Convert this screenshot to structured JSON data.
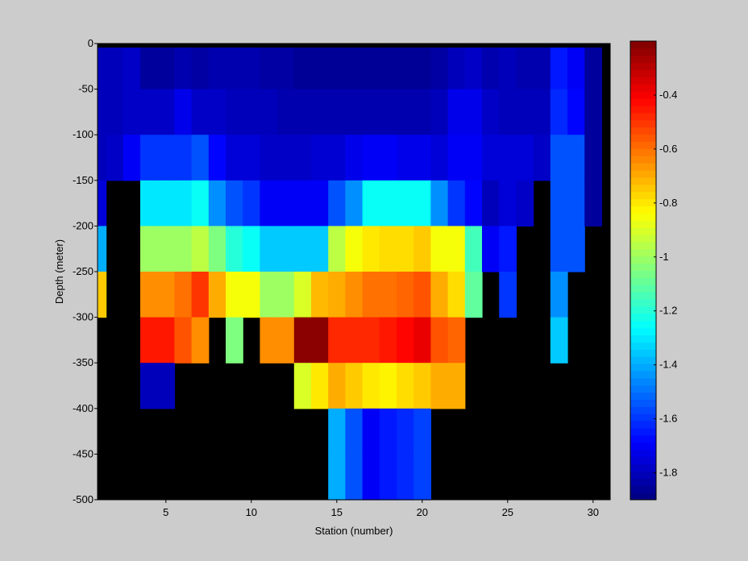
{
  "chart_data": {
    "type": "heatmap",
    "title": "",
    "xlabel": "Station (number)",
    "ylabel": "Depth (meter)",
    "xlim": [
      1,
      31
    ],
    "ylim": [
      -500,
      0
    ],
    "xticks": [
      5,
      10,
      15,
      20,
      25,
      30
    ],
    "yticks": [
      0,
      -50,
      -100,
      -150,
      -200,
      -250,
      -300,
      -350,
      -400,
      -450,
      -500
    ],
    "cell_width_stations": 1,
    "cell_height_m": 50,
    "no_data_color": "#000000",
    "colorbar": {
      "colormap": "jet",
      "range": [
        -1.9,
        -0.2
      ],
      "ticks": [
        -0.4,
        -0.6,
        -0.8,
        -1,
        -1.2,
        -1.4,
        -1.6,
        -1.8
      ]
    },
    "columns": [
      {
        "x": 1,
        "values": [
          -1.8,
          -1.8,
          -1.8,
          -1.75,
          -1.4,
          -0.75,
          null,
          null,
          null,
          null
        ]
      },
      {
        "x": 2,
        "values": [
          -1.8,
          -1.8,
          -1.78,
          null,
          null,
          null,
          null,
          null,
          null,
          null
        ]
      },
      {
        "x": 3,
        "values": [
          -1.78,
          -1.78,
          -1.7,
          null,
          null,
          null,
          null,
          null,
          null,
          null
        ]
      },
      {
        "x": 4,
        "values": [
          -1.85,
          -1.78,
          -1.6,
          -1.3,
          -1.0,
          -0.65,
          -0.45,
          -1.8,
          null,
          null
        ]
      },
      {
        "x": 5,
        "values": [
          -1.85,
          -1.78,
          -1.6,
          -1.3,
          -1.0,
          -0.65,
          -0.45,
          -1.8,
          null,
          null
        ]
      },
      {
        "x": 6,
        "values": [
          -1.82,
          -1.72,
          -1.6,
          -1.3,
          -1.0,
          -0.6,
          -0.55,
          null,
          null,
          null
        ]
      },
      {
        "x": 7,
        "values": [
          -1.84,
          -1.78,
          -1.55,
          -1.25,
          -0.95,
          -0.5,
          -0.65,
          null,
          null,
          null
        ]
      },
      {
        "x": 8,
        "values": [
          -1.82,
          -1.78,
          -1.68,
          -1.45,
          -1.05,
          -0.7,
          null,
          null,
          null,
          null
        ]
      },
      {
        "x": 9,
        "values": [
          -1.82,
          -1.8,
          -1.75,
          -1.55,
          -1.2,
          -0.85,
          -1.05,
          null,
          null,
          null
        ]
      },
      {
        "x": 10,
        "values": [
          -1.82,
          -1.8,
          -1.75,
          -1.6,
          -1.25,
          -0.85,
          null,
          null,
          null,
          null
        ]
      },
      {
        "x": 11,
        "values": [
          -1.84,
          -1.8,
          -1.78,
          -1.7,
          -1.35,
          -1.0,
          -0.65,
          null,
          null,
          null
        ]
      },
      {
        "x": 12,
        "values": [
          -1.84,
          -1.82,
          -1.78,
          -1.7,
          -1.35,
          -1.0,
          -0.65,
          null,
          null,
          null
        ]
      },
      {
        "x": 13,
        "values": [
          -1.86,
          -1.82,
          -1.78,
          -1.7,
          -1.35,
          -0.9,
          -0.22,
          -0.9,
          null,
          null
        ]
      },
      {
        "x": 14,
        "values": [
          -1.86,
          -1.82,
          -1.76,
          -1.7,
          -1.35,
          -0.72,
          -0.22,
          -0.8,
          null,
          null
        ]
      },
      {
        "x": 15,
        "values": [
          -1.86,
          -1.82,
          -1.76,
          -1.55,
          -0.95,
          -0.7,
          -0.48,
          -0.7,
          -1.4,
          -1.4
        ]
      },
      {
        "x": 16,
        "values": [
          -1.86,
          -1.82,
          -1.72,
          -1.45,
          -0.85,
          -0.65,
          -0.48,
          -0.75,
          -1.55,
          -1.55
        ]
      },
      {
        "x": 17,
        "values": [
          -1.86,
          -1.82,
          -1.7,
          -1.25,
          -0.8,
          -0.6,
          -0.48,
          -0.8,
          -1.7,
          -1.7
        ]
      },
      {
        "x": 18,
        "values": [
          -1.86,
          -1.82,
          -1.7,
          -1.25,
          -0.78,
          -0.6,
          -0.45,
          -0.82,
          -1.65,
          -1.65
        ]
      },
      {
        "x": 19,
        "values": [
          -1.86,
          -1.82,
          -1.72,
          -1.25,
          -0.78,
          -0.58,
          -0.42,
          -0.78,
          -1.62,
          -1.62
        ]
      },
      {
        "x": 20,
        "values": [
          -1.86,
          -1.82,
          -1.72,
          -1.25,
          -0.75,
          -0.55,
          -0.38,
          -0.75,
          -1.58,
          -1.58
        ]
      },
      {
        "x": 21,
        "values": [
          -1.84,
          -1.8,
          -1.75,
          -1.45,
          -0.85,
          -0.7,
          -0.55,
          -0.7,
          null,
          null
        ]
      },
      {
        "x": 22,
        "values": [
          -1.8,
          -1.72,
          -1.7,
          -1.6,
          -0.85,
          -0.78,
          -0.58,
          -0.7,
          null,
          null
        ]
      },
      {
        "x": 23,
        "values": [
          -1.78,
          -1.72,
          -1.7,
          -1.68,
          -1.15,
          -1.1,
          null,
          null,
          null,
          null
        ]
      },
      {
        "x": 24,
        "values": [
          -1.82,
          -1.78,
          -1.75,
          -1.8,
          -1.7,
          null,
          null,
          null,
          null,
          null
        ]
      },
      {
        "x": 25,
        "values": [
          -1.8,
          -1.8,
          -1.75,
          -1.75,
          -1.65,
          -1.6,
          null,
          null,
          null,
          null
        ]
      },
      {
        "x": 26,
        "values": [
          -1.82,
          -1.8,
          -1.75,
          -1.78,
          null,
          null,
          null,
          null,
          null,
          null
        ]
      },
      {
        "x": 27,
        "values": [
          -1.82,
          -1.8,
          -1.78,
          null,
          null,
          null,
          null,
          null,
          null,
          null
        ]
      },
      {
        "x": 28,
        "values": [
          -1.65,
          -1.62,
          -1.55,
          -1.55,
          -1.55,
          -1.45,
          -1.35,
          null,
          null,
          null
        ]
      },
      {
        "x": 29,
        "values": [
          -1.7,
          -1.68,
          -1.55,
          -1.55,
          -1.55,
          null,
          null,
          null,
          null,
          null
        ]
      },
      {
        "x": 30,
        "values": [
          -1.85,
          -1.85,
          -1.85,
          -1.85,
          null,
          null,
          null,
          null,
          null,
          null
        ]
      }
    ]
  }
}
